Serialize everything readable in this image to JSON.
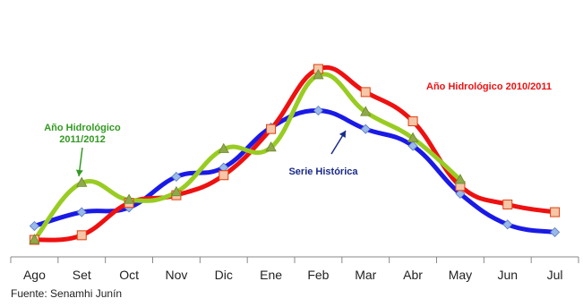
{
  "chart_data": {
    "type": "line",
    "categories": [
      "Ago",
      "Set",
      "Oct",
      "Nov",
      "Dic",
      "Ene",
      "Feb",
      "Mar",
      "Abr",
      "May",
      "Jun",
      "Jul"
    ],
    "ylim": [
      0,
      100
    ],
    "grid": false,
    "legend": "none",
    "series": [
      {
        "name": "Serie Histórica",
        "color": "#1a1ae6",
        "marker": "diamond",
        "values": [
          9,
          18,
          21,
          41,
          47,
          73,
          84,
          72,
          61,
          30,
          10,
          5
        ]
      },
      {
        "name": "Año Hidrológico 2010/2011",
        "color": "#ee1111",
        "marker": "square",
        "values": [
          0,
          3,
          24,
          29,
          42,
          72,
          111,
          96,
          77,
          35,
          23,
          18
        ]
      },
      {
        "name": "Año Hidrológico 2011/2012",
        "color": "#99cc22",
        "marker": "triangle",
        "values": [
          0,
          37,
          26,
          31,
          59,
          60,
          107,
          83,
          66,
          39,
          null,
          null
        ]
      }
    ],
    "annotations": [
      {
        "text_lines": [
          "Año Hidrológico 2010/2011"
        ],
        "series": 1,
        "color": "#ee1111"
      },
      {
        "text_lines": [
          "Año Hidrológico",
          "2011/2012"
        ],
        "series": 2,
        "color": "#339922"
      },
      {
        "text_lines": [
          "Serie Histórica"
        ],
        "series": 0,
        "color": "#1a2a88"
      }
    ]
  },
  "source_note": "Fuente: Senamhi Junín"
}
